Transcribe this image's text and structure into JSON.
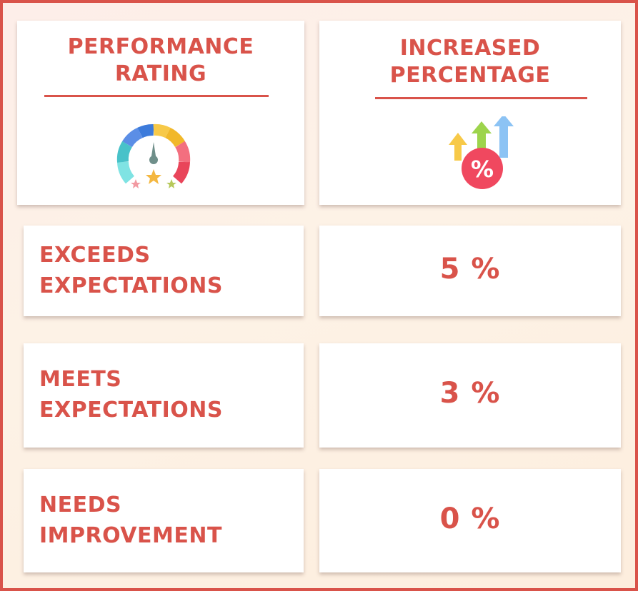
{
  "header": {
    "rating_title": "PERFORMANCE\nRATING",
    "percentage_title": "INCREASED\nPERCENTAGE",
    "rating_icon": "gauge-with-stars-icon",
    "percentage_icon": "percent-growth-arrows-icon"
  },
  "rows": [
    {
      "rating": "EXCEEDS\nEXPECTATIONS",
      "percentage": "5 %"
    },
    {
      "rating": "MEETS\nEXPECTATIONS",
      "percentage": "3 %"
    },
    {
      "rating": "NEEDS\nIMPROVEMENT",
      "percentage": "0 %"
    }
  ],
  "colors": {
    "accent": "#d9534a",
    "card": "#ffffff",
    "background": "#fdf0e6"
  }
}
